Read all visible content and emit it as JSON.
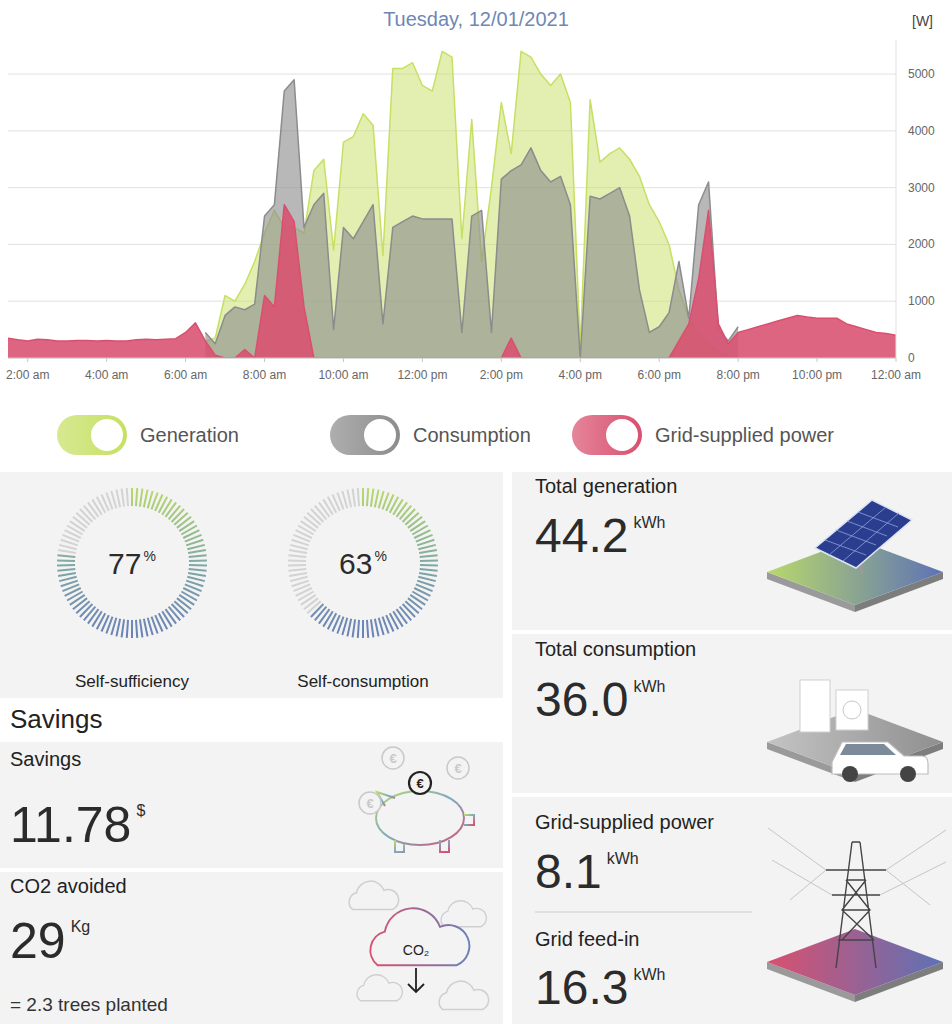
{
  "chart_data": {
    "type": "area",
    "title": "Tuesday, 12/01/2021",
    "ylabel": "[W]",
    "x": [
      1.5,
      1.75,
      2,
      2.25,
      2.5,
      2.75,
      3,
      3.25,
      3.5,
      3.75,
      4,
      4.25,
      4.5,
      4.75,
      5,
      5.25,
      5.5,
      5.75,
      6,
      6.25,
      6.5,
      6.75,
      7,
      7.25,
      7.5,
      7.75,
      8,
      8.25,
      8.5,
      8.75,
      9,
      9.25,
      9.5,
      9.75,
      10,
      10.25,
      10.5,
      10.75,
      11,
      11.25,
      11.5,
      11.75,
      12,
      12.25,
      12.5,
      12.75,
      13,
      13.25,
      13.5,
      13.75,
      14,
      14.25,
      14.5,
      14.75,
      15,
      15.25,
      15.5,
      15.75,
      16,
      16.25,
      16.5,
      16.75,
      17,
      17.25,
      17.5,
      17.75,
      18,
      18.25,
      18.5,
      18.75,
      19,
      19.25,
      19.5,
      19.75,
      20,
      20.25,
      20.5,
      20.75,
      21,
      21.25,
      21.5,
      21.75,
      22,
      22.25,
      22.5,
      22.75,
      23,
      23.25,
      23.5,
      23.75,
      24
    ],
    "xlim": [
      1.5,
      24
    ],
    "xticks": [
      {
        "value": 2,
        "label": "2:00 am"
      },
      {
        "value": 4,
        "label": "4:00 am"
      },
      {
        "value": 6,
        "label": "6:00 am"
      },
      {
        "value": 8,
        "label": "8:00 am"
      },
      {
        "value": 10,
        "label": "10:00 am"
      },
      {
        "value": 12,
        "label": "12:00 pm"
      },
      {
        "value": 14,
        "label": "2:00 pm"
      },
      {
        "value": 16,
        "label": "4:00 pm"
      },
      {
        "value": 18,
        "label": "6:00 pm"
      },
      {
        "value": 20,
        "label": "8:00 pm"
      },
      {
        "value": 22,
        "label": "10:00 pm"
      },
      {
        "value": 24,
        "label": "12:00 am"
      }
    ],
    "ylim": [
      0,
      5600
    ],
    "yticks": [
      0,
      1000,
      2000,
      3000,
      4000,
      5000
    ],
    "grid": true,
    "legend": "bottom",
    "series": [
      {
        "name": "Generation",
        "color": "#c5e063",
        "values": [
          null,
          null,
          null,
          null,
          null,
          null,
          null,
          null,
          null,
          null,
          null,
          null,
          null,
          null,
          null,
          null,
          null,
          null,
          null,
          null,
          300,
          350,
          1100,
          1000,
          1300,
          1700,
          2200,
          2600,
          2300,
          2300,
          2200,
          3300,
          3500,
          1900,
          3800,
          3900,
          4300,
          4100,
          1800,
          5100,
          5100,
          5200,
          4800,
          4700,
          5400,
          5300,
          2100,
          4200,
          1700,
          3000,
          4500,
          3600,
          5400,
          5300,
          5000,
          4800,
          5000,
          4500,
          200,
          4550,
          3450,
          3600,
          3700,
          3500,
          3200,
          2700,
          2400,
          2000,
          1200,
          700,
          400,
          250,
          100,
          50,
          null,
          null,
          null,
          null,
          null,
          null,
          null,
          null,
          null,
          null,
          null,
          null,
          null,
          null,
          null,
          null,
          null
        ]
      },
      {
        "name": "Consumption",
        "color": "#8c8c8c",
        "values": [
          null,
          null,
          null,
          null,
          null,
          null,
          null,
          null,
          null,
          null,
          null,
          null,
          null,
          null,
          null,
          null,
          null,
          null,
          null,
          null,
          450,
          250,
          750,
          900,
          850,
          950,
          2500,
          2700,
          4700,
          4900,
          2300,
          2700,
          2900,
          500,
          2300,
          2100,
          2400,
          2700,
          600,
          2300,
          2400,
          2500,
          2450,
          2450,
          2450,
          2450,
          450,
          2500,
          2600,
          450,
          3150,
          3300,
          3400,
          3700,
          3300,
          3100,
          3200,
          2700,
          0,
          2850,
          2800,
          2900,
          3000,
          2500,
          1200,
          450,
          550,
          800,
          1700,
          700,
          2700,
          3100,
          500,
          300,
          550,
          null,
          null,
          null,
          null,
          null,
          null,
          null,
          null,
          null,
          null,
          null,
          null,
          null,
          null,
          null,
          null
        ]
      },
      {
        "name": "Grid-supplied power",
        "color": "#d9506f",
        "values": [
          350,
          320,
          300,
          330,
          320,
          300,
          300,
          310,
          310,
          300,
          310,
          300,
          300,
          320,
          330,
          320,
          330,
          340,
          450,
          620,
          300,
          50,
          0,
          0,
          150,
          0,
          1100,
          900,
          2700,
          2400,
          900,
          0,
          0,
          0,
          0,
          0,
          0,
          0,
          0,
          0,
          0,
          0,
          0,
          0,
          0,
          0,
          0,
          0,
          0,
          0,
          0,
          350,
          0,
          0,
          0,
          0,
          0,
          0,
          0,
          0,
          0,
          0,
          0,
          0,
          0,
          0,
          0,
          0,
          300,
          600,
          1400,
          2600,
          600,
          250,
          450,
          500,
          550,
          600,
          650,
          700,
          750,
          720,
          700,
          700,
          700,
          600,
          550,
          500,
          450,
          430,
          400
        ]
      }
    ]
  },
  "panels": {
    "gauges": [
      {
        "label": "Self-sufficiency",
        "value": 77,
        "unit": "%",
        "range": [
          0,
          100
        ]
      },
      {
        "label": "Self-consumption",
        "value": 63,
        "unit": "%",
        "range": [
          0,
          100
        ]
      }
    ],
    "savings_heading": "Savings",
    "savings": {
      "label": "Savings",
      "value": "11.78",
      "unit": "$",
      "icon_text": "€"
    },
    "co2": {
      "label": "CO2 avoided",
      "value": "29",
      "unit": "Kg",
      "note": "= 2.3 trees planted",
      "icon_text": "CO₂"
    },
    "totals": [
      {
        "label": "Total generation",
        "value": "44.2",
        "unit": "kWh"
      },
      {
        "label": "Total consumption",
        "value": "36.0",
        "unit": "kWh"
      }
    ],
    "grid": [
      {
        "label": "Grid-supplied power",
        "value": "8.1",
        "unit": "kWh"
      },
      {
        "label": "Grid feed-in",
        "value": "16.3",
        "unit": "kWh"
      }
    ]
  }
}
